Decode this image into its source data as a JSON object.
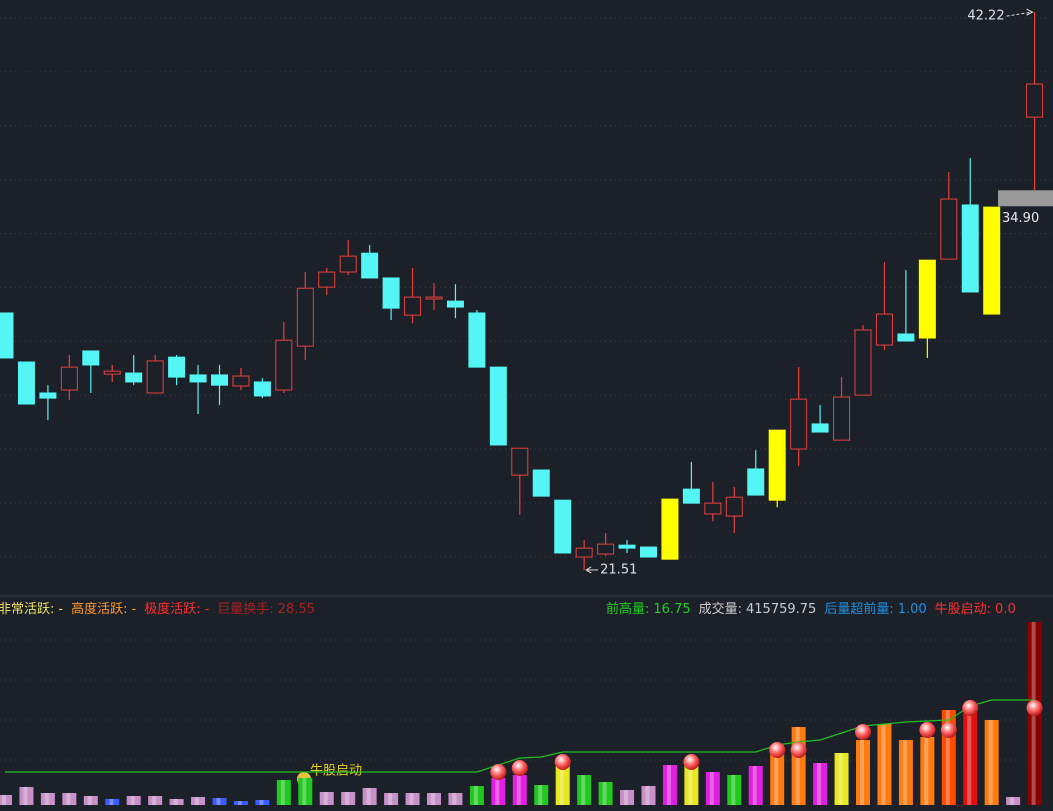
{
  "chart_data": [
    {
      "type": "candlestick",
      "open": [
        31.05,
        29.23,
        28.08,
        28.19,
        29.64,
        28.78,
        28.82,
        28.08,
        29.41,
        28.75,
        28.75,
        28.34,
        28.49,
        28.19,
        29.82,
        32.01,
        32.57,
        33.27,
        32.35,
        30.97,
        31.57,
        31.49,
        31.05,
        29.04,
        25.03,
        25.22,
        24.1,
        21.99,
        22.1,
        22.43,
        22.36,
        21.91,
        24.51,
        23.59,
        23.51,
        25.26,
        24.1,
        26.0,
        26.93,
        26.33,
        28.0,
        29.86,
        30.27,
        30.12,
        33.05,
        35.06,
        31.01,
        null,
        38.32
      ],
      "high": [
        31.05,
        29.23,
        28.37,
        29.49,
        29.64,
        29.12,
        29.49,
        29.49,
        29.49,
        29.12,
        29.12,
        29.01,
        28.63,
        30.71,
        32.57,
        32.72,
        33.76,
        33.57,
        32.35,
        32.72,
        32.16,
        32.12,
        31.16,
        29.04,
        26.03,
        25.22,
        24.1,
        22.62,
        22.88,
        22.62,
        22.36,
        24.14,
        25.52,
        24.77,
        24.59,
        25.96,
        26.7,
        29.04,
        27.63,
        28.67,
        30.6,
        32.94,
        32.64,
        33.01,
        36.28,
        36.8,
        34.98,
        null,
        42.22
      ],
      "low": [
        29.38,
        27.67,
        27.07,
        27.82,
        28.08,
        28.49,
        28.37,
        28.08,
        28.37,
        27.3,
        27.63,
        28.19,
        27.89,
        28.08,
        29.3,
        31.72,
        32.46,
        32.35,
        30.79,
        30.67,
        31.16,
        30.86,
        29.04,
        26.15,
        23.55,
        24.25,
        22.14,
        21.51,
        22.03,
        22.14,
        21.99,
        21.91,
        23.99,
        23.32,
        22.88,
        24.29,
        23.84,
        25.37,
        26.63,
        26.33,
        28.0,
        29.67,
        30.01,
        29.38,
        33.05,
        31.83,
        31.01,
        null,
        35.61
      ],
      "close": [
        29.38,
        27.67,
        27.89,
        29.04,
        29.12,
        28.89,
        28.49,
        29.27,
        28.67,
        28.49,
        28.37,
        28.71,
        27.97,
        30.04,
        31.97,
        32.57,
        33.16,
        32.35,
        31.23,
        31.64,
        31.64,
        31.27,
        29.04,
        26.15,
        26.03,
        24.25,
        22.14,
        22.32,
        22.47,
        22.32,
        21.99,
        24.14,
        23.99,
        23.99,
        24.21,
        24.29,
        26.7,
        27.85,
        26.63,
        27.93,
        30.42,
        31.01,
        30.01,
        33.01,
        35.28,
        31.83,
        34.98,
        null,
        39.55
      ],
      "colors": [
        "#54f5f5",
        "#54f5f5",
        "#54f5f5",
        "#e8413c",
        "#54f5f5",
        "#e8413c",
        "#54f5f5",
        "#e8413c",
        "#54f5f5",
        "#54f5f5",
        "#54f5f5",
        "#e8413c",
        "#54f5f5",
        "#e8413c",
        "#e8413c",
        "#e8413c",
        "#e8413c",
        "#54f5f5",
        "#54f5f5",
        "#e8413c",
        "#e8413c",
        "#54f5f5",
        "#54f5f5",
        "#54f5f5",
        "#e8413c",
        "#54f5f5",
        "#54f5f5",
        "#e8413c",
        "#e8413c",
        "#54f5f5",
        "#54f5f5",
        "#ffff00",
        "#54f5f5",
        "#e8413c",
        "#e8413c",
        "#54f5f5",
        "#ffff00",
        "#e8413c",
        "#54f5f5",
        "#e8413c",
        "#e8413c",
        "#e8413c",
        "#54f5f5",
        "#ffff00",
        "#e8413c",
        "#54f5f5",
        "#ffff00",
        null,
        "#e8413c"
      ],
      "up_color": "#e8413c",
      "ylim": [
        20.58,
        42.67
      ],
      "yticks": [
        22,
        24,
        26,
        28,
        30,
        32,
        34,
        36,
        38,
        40,
        42
      ],
      "grid": true,
      "annotations": [
        {
          "value": 42.22,
          "label": "42.22"
        },
        {
          "value": 21.51,
          "label": "21.51"
        },
        {
          "value": 34.9,
          "label": "34.90"
        }
      ]
    },
    {
      "type": "volume",
      "indicators_left": [
        {
          "label": "非常活跃:",
          "value": "-",
          "color": "#f0e060"
        },
        {
          "label": "高度活跃:",
          "value": "-",
          "color": "#ff9a30"
        },
        {
          "label": "极度活跃:",
          "value": "-",
          "color": "#ff3030"
        },
        {
          "label": "巨量换手:",
          "value": "28.55",
          "color": "#a82020"
        }
      ],
      "indicators_right": [
        {
          "label": "前高量:",
          "value": "16.75",
          "color": "#20d020"
        },
        {
          "label": "成交量:",
          "value": "415759.75",
          "color": "#cccccc"
        },
        {
          "label": "后量超前量:",
          "value": "1.00",
          "color": "#2090e0"
        },
        {
          "label": "牛股启动:",
          "value": "0.0",
          "color": "#ff3030"
        }
      ],
      "signal_label": "牛股启动",
      "values": [
        22720,
        40896,
        27264,
        27264,
        20448,
        13632,
        20448,
        20448,
        13632,
        18176,
        15904,
        9088,
        11360,
        56800,
        61344,
        29536,
        29536,
        38624,
        27264,
        27264,
        27264,
        27264,
        43168,
        61344,
        68160,
        45440,
        95424,
        68160,
        52256,
        34080,
        43168,
        90880,
        97696,
        74976,
        68160,
        88608,
        124960,
        177216,
        95424,
        118144,
        147680,
        184032,
        147680,
        154496,
        215840,
        211296,
        193120,
        18176,
        415759.75
      ],
      "colors": [
        "#c890c8",
        "#c890c8",
        "#c890c8",
        "#c890c8",
        "#c890c8",
        "#3a5cff",
        "#c890c8",
        "#c890c8",
        "#c890c8",
        "#c890c8",
        "#3a5cff",
        "#3a5cff",
        "#3a5cff",
        "#20c820",
        "#20c820",
        "#c890c8",
        "#c890c8",
        "#c890c8",
        "#c890c8",
        "#c890c8",
        "#c890c8",
        "#c890c8",
        "#20c820",
        "#e020e0",
        "#e020e0",
        "#20c820",
        "#e8e820",
        "#20c820",
        "#20c820",
        "#c890c8",
        "#c890c8",
        "#e020e0",
        "#e8e820",
        "#e020e0",
        "#20c820",
        "#e020e0",
        "#ff7a10",
        "#ff7a10",
        "#e020e0",
        "#e8e820",
        "#ff7a10",
        "#ff7a10",
        "#ff7a10",
        "#ff7a10",
        "#ff4a00",
        "#e01010",
        "#ff7a10",
        "#c890c8",
        "#8a0000"
      ],
      "line": {
        "color": "#20c020",
        "values": [
          74976,
          74976,
          74976,
          74976,
          74976,
          74976,
          74976,
          74976,
          74976,
          74976,
          74976,
          74976,
          74976,
          74976,
          74976,
          74976,
          74976,
          74976,
          74976,
          74976,
          74976,
          74976,
          74976,
          90880,
          106784,
          109056,
          120416,
          120416,
          120416,
          120416,
          120416,
          120416,
          120416,
          120416,
          120416,
          120416,
          136320,
          143136,
          147680,
          163584,
          179488,
          184032,
          188576,
          190848,
          193120,
          224928,
          238560,
          238560,
          238560
        ]
      },
      "signals": [
        null,
        null,
        null,
        null,
        null,
        null,
        null,
        null,
        null,
        null,
        null,
        null,
        null,
        null,
        null,
        null,
        null,
        null,
        null,
        null,
        null,
        null,
        null,
        74976,
        84064,
        null,
        97696,
        null,
        null,
        null,
        null,
        null,
        97696,
        null,
        null,
        null,
        124960,
        124960,
        null,
        null,
        165856,
        null,
        null,
        170400,
        170400,
        220384,
        null,
        null,
        220384
      ],
      "ylim": [
        0,
        438496
      ],
      "yticks": [
        102240,
        193120,
        284000,
        374880
      ],
      "grid": true
    }
  ]
}
